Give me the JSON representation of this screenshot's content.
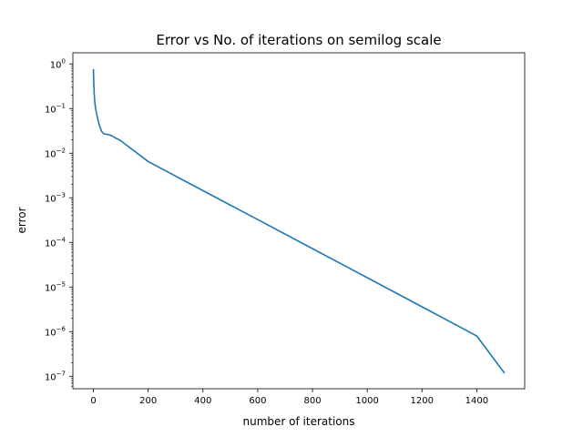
{
  "chart_data": {
    "type": "line",
    "title": "Error vs No. of iterations on semilog scale",
    "xlabel": "number of iterations",
    "ylabel": "error",
    "yscale": "log",
    "xlim": [
      -75,
      1575
    ],
    "ylim_log10": [
      -7.28,
      0.25
    ],
    "grid": false,
    "x_ticks": [
      {
        "value": 0,
        "label": "0"
      },
      {
        "value": 200,
        "label": "200"
      },
      {
        "value": 400,
        "label": "400"
      },
      {
        "value": 600,
        "label": "600"
      },
      {
        "value": 800,
        "label": "800"
      },
      {
        "value": 1000,
        "label": "1000"
      },
      {
        "value": 1200,
        "label": "1200"
      },
      {
        "value": 1400,
        "label": "1400"
      }
    ],
    "y_ticks": [
      {
        "value": 1,
        "base": "10",
        "exp": "0"
      },
      {
        "value": 0.1,
        "base": "10",
        "exp": "−1"
      },
      {
        "value": 0.01,
        "base": "10",
        "exp": "−2"
      },
      {
        "value": 0.001,
        "base": "10",
        "exp": "−3"
      },
      {
        "value": 0.0001,
        "base": "10",
        "exp": "−4"
      },
      {
        "value": 1e-05,
        "base": "10",
        "exp": "−5"
      },
      {
        "value": 1e-06,
        "base": "10",
        "exp": "−6"
      },
      {
        "value": 1e-07,
        "base": "10",
        "exp": "−7"
      }
    ],
    "series": [
      {
        "color": "#1f77b4",
        "x": [
          0,
          1,
          2,
          3,
          5,
          8,
          12,
          16,
          20,
          25,
          30,
          35,
          40,
          50,
          60,
          70,
          80,
          100,
          200,
          400,
          600,
          800,
          1000,
          1200,
          1400,
          1500
        ],
        "y": [
          0.75,
          0.45,
          0.3,
          0.21,
          0.14,
          0.1,
          0.075,
          0.058,
          0.046,
          0.037,
          0.031,
          0.028,
          0.027,
          0.0265,
          0.0255,
          0.024,
          0.022,
          0.019,
          0.0065,
          0.00145,
          0.000325,
          7.25e-05,
          1.62e-05,
          3.6e-06,
          8e-07,
          1.2e-07
        ]
      }
    ]
  }
}
